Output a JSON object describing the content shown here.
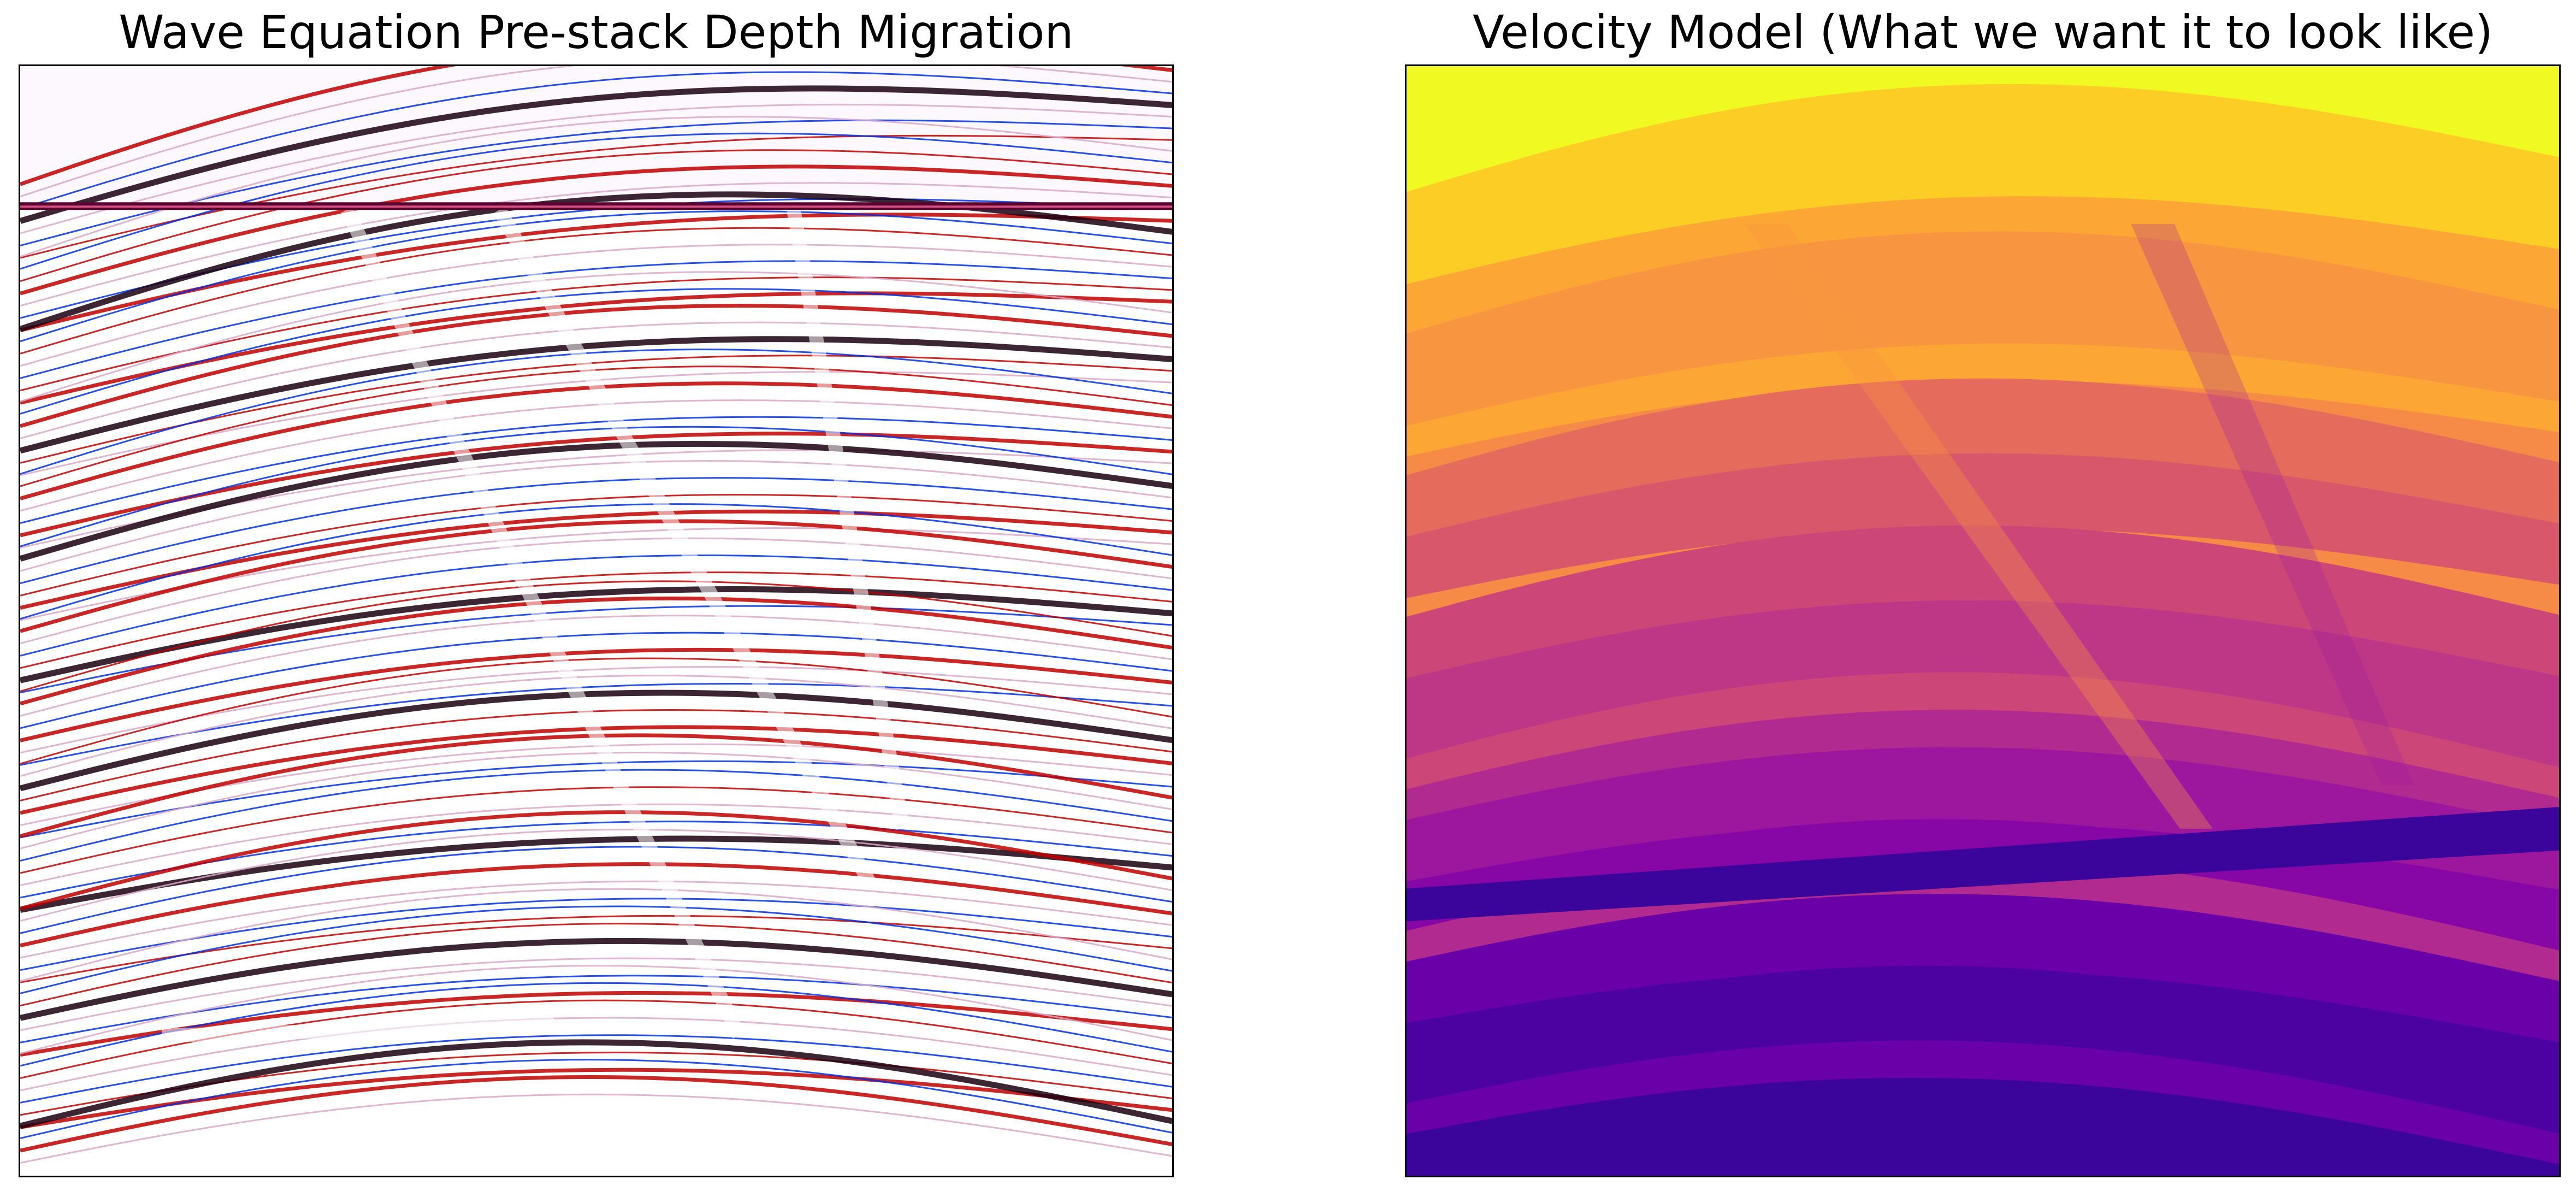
{
  "figure": {
    "panels": [
      {
        "title": "Wave Equation Pre-stack Depth Migration",
        "image": "seismic-migration-image",
        "colormap": "seismic",
        "colors": {
          "positive": "#c00000",
          "negative": "#0030e0",
          "strong": "#1a0010",
          "background": "#ffffff"
        }
      },
      {
        "title": "Velocity Model (What we want it to look like)",
        "image": "velocity-model-image",
        "colormap": "plasma",
        "colors": {
          "top_layer": "#f0f921",
          "mid": "#f89540",
          "purple": "#9c179e",
          "deep": "#3b049a"
        }
      }
    ]
  }
}
